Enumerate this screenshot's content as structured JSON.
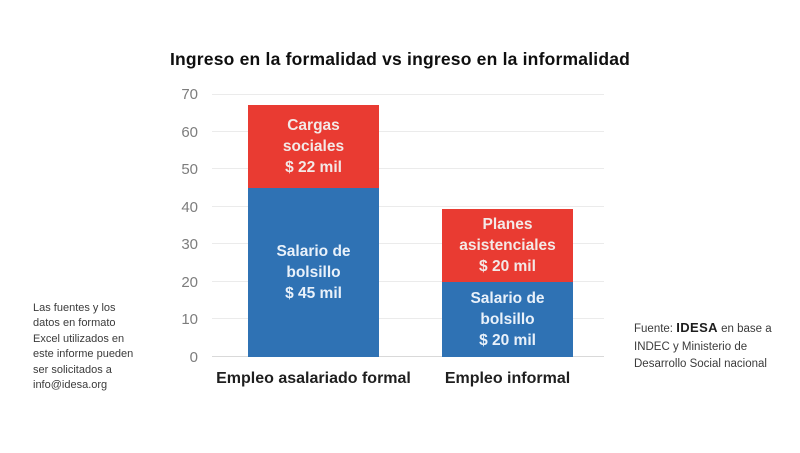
{
  "chart_data": {
    "type": "bar",
    "stacked": true,
    "title": "Ingreso en la formalidad vs ingreso en la informalidad",
    "categories": [
      "Empleo asalariado formal",
      "Empleo informal"
    ],
    "series": [
      {
        "name": "Salario de bolsillo",
        "color": "#2f72b4",
        "values": [
          45,
          20
        ]
      },
      {
        "name": "Cargas sociales / Planes asistenciales",
        "color": "#e93b32",
        "values": [
          22,
          19.5
        ]
      }
    ],
    "ylim": [
      0,
      70
    ],
    "yticks": [
      0,
      10,
      20,
      30,
      40,
      50,
      60,
      70
    ],
    "grid": true,
    "legend": false,
    "bars": [
      {
        "category": "Empleo asalariado formal",
        "segments": [
          {
            "name": "salario-de-bolsillo-formal",
            "value": 45,
            "label": "Salario de\nbolsillo\n$ 45 mil",
            "color": "#2f72b4",
            "text_color": "#e9f1fa"
          },
          {
            "name": "cargas-sociales",
            "value": 22,
            "label": "Cargas\nsociales\n$ 22 mil",
            "color": "#e93b32",
            "text_color": "#f3e9e7"
          }
        ]
      },
      {
        "category": "Empleo informal",
        "segments": [
          {
            "name": "salario-de-bolsillo-informal",
            "value": 20,
            "label": "Salario de\nbolsillo\n$ 20 mil",
            "color": "#2f72b4",
            "text_color": "#e9f1fa"
          },
          {
            "name": "planes-asistenciales",
            "value": 19.5,
            "label": "Planes\nasistenciales\n$ 20 mil",
            "color": "#e93b32",
            "text_color": "#f3e9e7"
          }
        ]
      }
    ]
  },
  "footnotes": {
    "left": "Las fuentes y los\ndatos en formato\nExcel utilizados en\neste informe pueden\nser solicitados a\ninfo@idesa.org",
    "source_prefix": "Fuente: ",
    "source_org": "IDESA",
    "source_suffix": " en base a INDEC y Ministerio de Desarrollo Social nacional"
  }
}
